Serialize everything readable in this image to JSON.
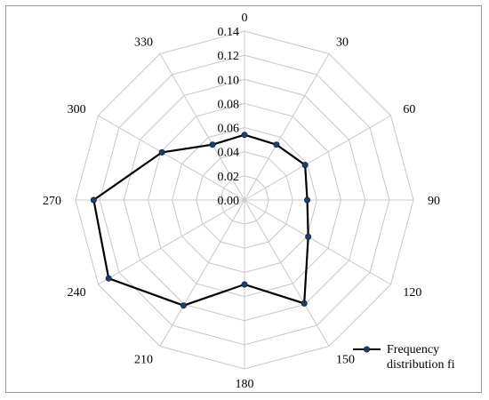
{
  "chart_data": {
    "type": "radar",
    "categories": [
      "0",
      "30",
      "60",
      "90",
      "120",
      "150",
      "180",
      "210",
      "240",
      "270",
      "300",
      "330"
    ],
    "angles_deg": [
      0,
      30,
      60,
      90,
      120,
      150,
      180,
      210,
      240,
      270,
      300,
      330
    ],
    "radial_ticks": [
      "0.00",
      "0.02",
      "0.04",
      "0.06",
      "0.08",
      "0.10",
      "0.12",
      "0.14"
    ],
    "rlim": [
      0,
      0.14
    ],
    "grid": true,
    "legend": "bottom-right",
    "series": [
      {
        "name": "Frequency distribution fi",
        "values": [
          0.054,
          0.053,
          0.058,
          0.052,
          0.061,
          0.099,
          0.07,
          0.101,
          0.13,
          0.125,
          0.079,
          0.053
        ],
        "color": "#000000",
        "marker_color": "#1f3f66"
      }
    ]
  },
  "legend": {
    "line1": "Frequency",
    "line2": "distribution fi"
  }
}
